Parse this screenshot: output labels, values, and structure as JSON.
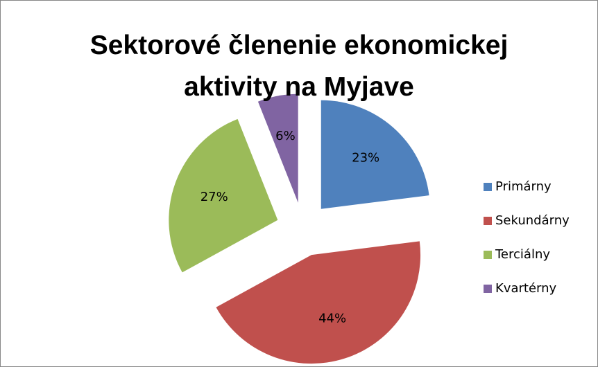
{
  "chart_data": {
    "type": "pie",
    "title": "Sektorové členenie ekonomickej aktivity na Myjave",
    "categories": [
      "Primárny",
      "Sekundárny",
      "Terciálny",
      "Kvartérny"
    ],
    "values": [
      23,
      44,
      27,
      6
    ],
    "value_labels": [
      "23%",
      "44%",
      "27%",
      "6%"
    ],
    "colors": [
      "#4f81bd",
      "#c0504d",
      "#9bbb59",
      "#8064a2"
    ],
    "legend": "right"
  }
}
